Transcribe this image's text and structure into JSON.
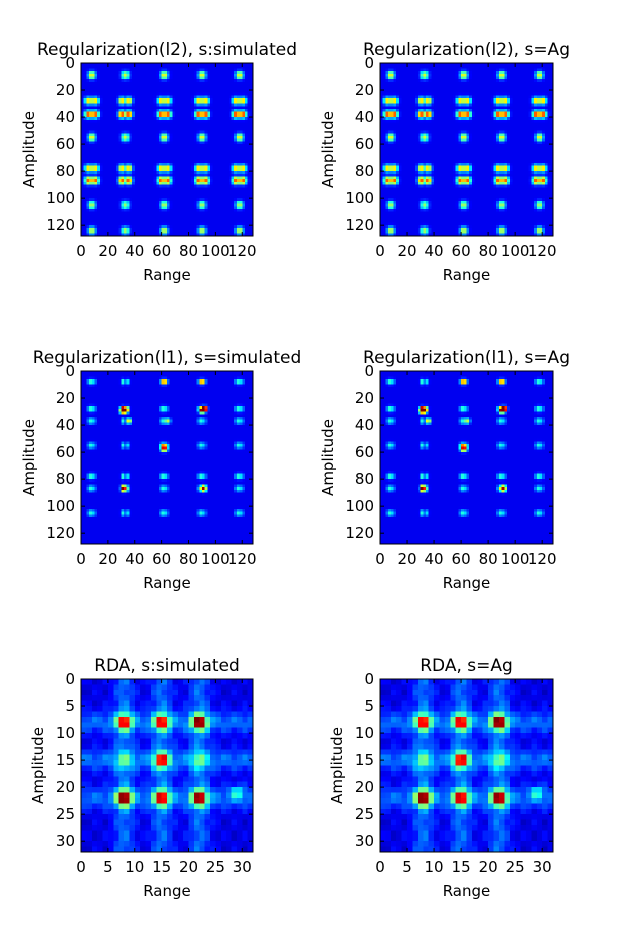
{
  "chart_data": [
    {
      "type": "heatmap",
      "title": "Regularization(l2), s:simulated",
      "xlabel": "Range",
      "ylabel": "Amplitude",
      "size": 128,
      "pattern": "l2",
      "xlim": [
        0,
        128
      ],
      "ylim": [
        128,
        0
      ],
      "xticks": [
        "0",
        "20",
        "40",
        "60",
        "80",
        "100",
        "120"
      ],
      "yticks": [
        "0",
        "20",
        "40",
        "60",
        "80",
        "100",
        "120"
      ],
      "xtick_values": [
        0,
        20,
        40,
        60,
        80,
        100,
        120
      ],
      "ytick_values": [
        0,
        20,
        40,
        60,
        80,
        100,
        120
      ],
      "colormap": "jet"
    },
    {
      "type": "heatmap",
      "title": "Regularization(l2), s=Ag",
      "xlabel": "Range",
      "ylabel": "Amplitude",
      "size": 128,
      "pattern": "l2",
      "xlim": [
        0,
        128
      ],
      "ylim": [
        128,
        0
      ],
      "xticks": [
        "0",
        "20",
        "40",
        "60",
        "80",
        "100",
        "120"
      ],
      "yticks": [
        "0",
        "20",
        "40",
        "60",
        "80",
        "100",
        "120"
      ],
      "xtick_values": [
        0,
        20,
        40,
        60,
        80,
        100,
        120
      ],
      "ytick_values": [
        0,
        20,
        40,
        60,
        80,
        100,
        120
      ],
      "colormap": "jet"
    },
    {
      "type": "heatmap",
      "title": "Regularization(l1), s=simulated",
      "xlabel": "Range",
      "ylabel": "Amplitude",
      "size": 128,
      "pattern": "l1",
      "xlim": [
        0,
        128
      ],
      "ylim": [
        128,
        0
      ],
      "xticks": [
        "0",
        "20",
        "40",
        "60",
        "80",
        "100",
        "120"
      ],
      "yticks": [
        "0",
        "20",
        "40",
        "60",
        "80",
        "100",
        "120"
      ],
      "xtick_values": [
        0,
        20,
        40,
        60,
        80,
        100,
        120
      ],
      "ytick_values": [
        0,
        20,
        40,
        60,
        80,
        100,
        120
      ],
      "colormap": "jet"
    },
    {
      "type": "heatmap",
      "title": "Regularization(l1), s=Ag",
      "xlabel": "Range",
      "ylabel": "Amplitude",
      "size": 128,
      "pattern": "l1",
      "xlim": [
        0,
        128
      ],
      "ylim": [
        128,
        0
      ],
      "xticks": [
        "0",
        "20",
        "40",
        "60",
        "80",
        "100",
        "120"
      ],
      "yticks": [
        "0",
        "20",
        "40",
        "60",
        "80",
        "100",
        "120"
      ],
      "xtick_values": [
        0,
        20,
        40,
        60,
        80,
        100,
        120
      ],
      "ytick_values": [
        0,
        20,
        40,
        60,
        80,
        100,
        120
      ],
      "colormap": "jet"
    },
    {
      "type": "heatmap",
      "title": "RDA, s:simulated",
      "xlabel": "Range",
      "ylabel": "Amplitude",
      "size": 32,
      "pattern": "rda",
      "xlim": [
        0,
        32
      ],
      "ylim": [
        32,
        0
      ],
      "xticks": [
        "0",
        "5",
        "10",
        "15",
        "20",
        "25",
        "30"
      ],
      "yticks": [
        "0",
        "5",
        "10",
        "15",
        "20",
        "25",
        "30"
      ],
      "xtick_values": [
        0,
        5,
        10,
        15,
        20,
        25,
        30
      ],
      "ytick_values": [
        0,
        5,
        10,
        15,
        20,
        25,
        30
      ],
      "colormap": "jet"
    },
    {
      "type": "heatmap",
      "title": "RDA, s=Ag",
      "xlabel": "Range",
      "ylabel": "Amplitude",
      "size": 32,
      "pattern": "rda",
      "xlim": [
        0,
        32
      ],
      "ylim": [
        32,
        0
      ],
      "xticks": [
        "0",
        "5",
        "10",
        "15",
        "20",
        "25",
        "30"
      ],
      "yticks": [
        "0",
        "5",
        "10",
        "15",
        "20",
        "25",
        "30"
      ],
      "xtick_values": [
        0,
        5,
        10,
        15,
        20,
        25,
        30
      ],
      "ytick_values": [
        0,
        5,
        10,
        15,
        20,
        25,
        30
      ],
      "colormap": "jet"
    }
  ]
}
